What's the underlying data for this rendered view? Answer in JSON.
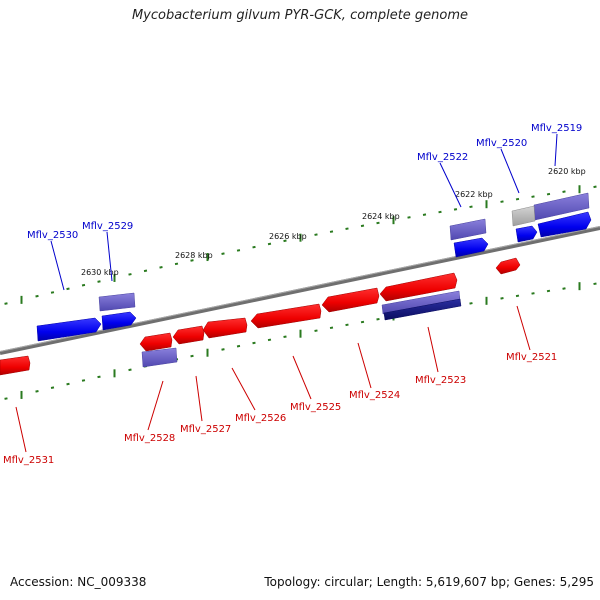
{
  "title": "Mycobacterium gilvum PYR-GCK, complete genome",
  "accession": "Accession: NC_009338",
  "topology": "Topology: circular; Length: 5,619,607 bp; Genes: 5,295",
  "colors": {
    "forward_gene": "#0000ff",
    "reverse_gene": "#ff0000",
    "feature_purple": "#6e63c8",
    "feature_navy": "#151880",
    "feature_gray": "#bdbdbd",
    "backbone": "#808080",
    "tick_green": "#2a7a1f",
    "label_blue": "#0000cc",
    "label_red": "#cc0000"
  },
  "kbp_labels": [
    "2620 kbp",
    "2622 kbp",
    "2624 kbp",
    "2626 kbp",
    "2628 kbp",
    "2630 kbp"
  ],
  "genes_top": [
    "Mflv_2519",
    "Mflv_2520",
    "Mflv_2522",
    "Mflv_2529",
    "Mflv_2530"
  ],
  "genes_bottom": [
    "Mflv_2521",
    "Mflv_2523",
    "Mflv_2524",
    "Mflv_2525",
    "Mflv_2526",
    "Mflv_2527",
    "Mflv_2528",
    "Mflv_2531"
  ]
}
